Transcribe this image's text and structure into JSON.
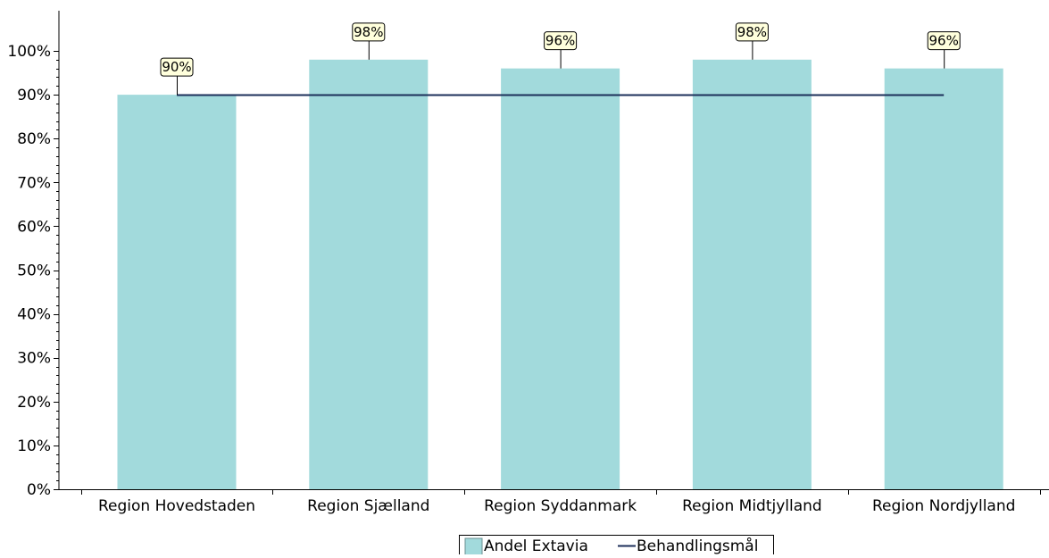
{
  "chart_data": {
    "type": "bar",
    "categories": [
      "Region Hovedstaden",
      "Region Sjælland",
      "Region Syddanmark",
      "Region Midtjylland",
      "Region Nordjylland"
    ],
    "series": [
      {
        "name": "Andel Extavia",
        "type": "bar",
        "values": [
          90,
          98,
          96,
          98,
          96
        ],
        "labels": [
          "90%",
          "98%",
          "96%",
          "98%",
          "96%"
        ],
        "color": "#a2dadc"
      },
      {
        "name": "Behandlingsmål",
        "type": "line",
        "values": [
          90,
          90,
          90,
          90,
          90
        ],
        "color": "#1c2f5a"
      }
    ],
    "yticks": [
      "0%",
      "10%",
      "20%",
      "30%",
      "40%",
      "50%",
      "60%",
      "70%",
      "80%",
      "90%",
      "100%"
    ],
    "ylim": [
      0,
      100
    ],
    "grid": false,
    "legend_position": "bottom",
    "label_box_color": "#ffffdc"
  }
}
